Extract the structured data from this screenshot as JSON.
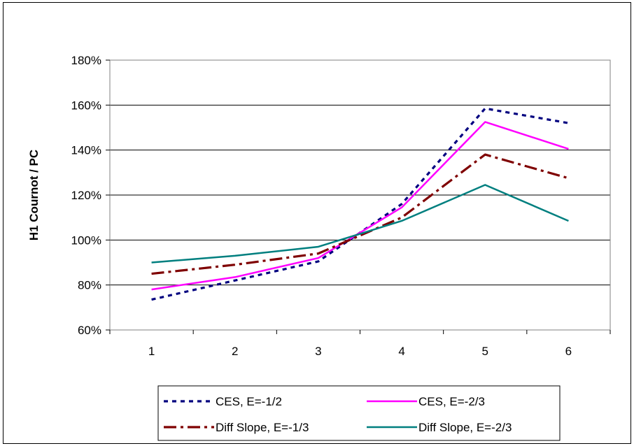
{
  "chart_data": {
    "type": "line",
    "title": "",
    "xlabel": "",
    "ylabel": "H1 Cournot / PC",
    "x": [
      1,
      2,
      3,
      4,
      5,
      6
    ],
    "ylim": [
      60,
      180
    ],
    "yticks": [
      "60%",
      "80%",
      "100%",
      "120%",
      "140%",
      "160%",
      "180%"
    ],
    "xticks": [
      "1",
      "2",
      "3",
      "4",
      "5",
      "6"
    ],
    "grid": "horizontal",
    "legend_position": "bottom",
    "series": [
      {
        "name": "CES, E=-1/2",
        "values": [
          73.5,
          82,
          90.5,
          116,
          158.5,
          152
        ],
        "color": "#00007f",
        "style": "dotted"
      },
      {
        "name": "CES, E=-2/3",
        "values": [
          78,
          83.5,
          92,
          114.5,
          152.5,
          140.5
        ],
        "color": "#ff00ff",
        "style": "solid"
      },
      {
        "name": "Diff Slope, E=-1/3",
        "values": [
          85,
          89,
          94,
          110,
          138,
          127.5
        ],
        "color": "#7f0000",
        "style": "dashdot"
      },
      {
        "name": "Diff Slope, E=-2/3",
        "values": [
          90,
          93,
          97,
          108.5,
          124.5,
          108.5
        ],
        "color": "#007f7f",
        "style": "solid"
      }
    ]
  }
}
